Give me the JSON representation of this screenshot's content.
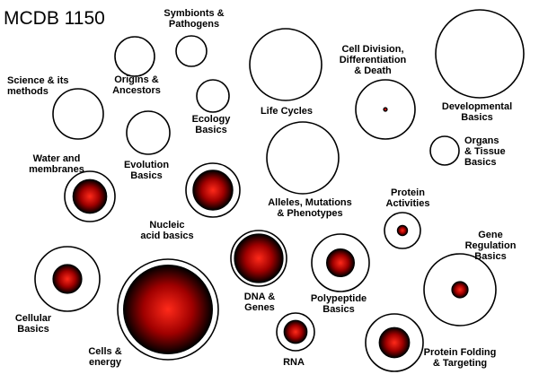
{
  "title": "MCDB 1150",
  "colors": {
    "core_center": "#ff2a1a",
    "core_mid": "#a00000",
    "core_edge": "#000000",
    "ring_stroke": "#000000",
    "background": "#ffffff"
  },
  "topics": [
    {
      "id": "symbionts",
      "label": [
        "Symbionts &",
        "Pathogens"
      ],
      "progress": 0
    },
    {
      "id": "origins",
      "label": [
        "Origins &",
        "Ancestors"
      ],
      "progress": 0
    },
    {
      "id": "science",
      "label": [
        "Science & its",
        "methods"
      ],
      "progress": 0
    },
    {
      "id": "ecology",
      "label": [
        "Ecology",
        "Basics"
      ],
      "progress": 0
    },
    {
      "id": "life-cycles",
      "label": [
        "Life Cycles"
      ],
      "progress": 0
    },
    {
      "id": "cell-division",
      "label": [
        "Cell Division,",
        "Differentiation",
        "& Death"
      ],
      "progress": 0.06
    },
    {
      "id": "developmental",
      "label": [
        "Developmental",
        "Basics"
      ],
      "progress": 0
    },
    {
      "id": "evolution",
      "label": [
        "Evolution",
        "Basics"
      ],
      "progress": 0
    },
    {
      "id": "organs",
      "label": [
        "Organs",
        "& Tissue",
        "Basics"
      ],
      "progress": 0
    },
    {
      "id": "water",
      "label": [
        "Water and",
        "membranes"
      ],
      "progress": 0.78
    },
    {
      "id": "nucleic",
      "label": [
        "Nucleic",
        "acid basics"
      ],
      "progress": 0.85
    },
    {
      "id": "alleles",
      "label": [
        "Alleles, Mutations",
        "& Phenotypes"
      ],
      "progress": 0
    },
    {
      "id": "protein-activities",
      "label": [
        "Protein",
        "Activities"
      ],
      "progress": 0.35
    },
    {
      "id": "gene-regulation",
      "label": [
        "Gene",
        "Regulation",
        "Basics"
      ],
      "progress": 0.25
    },
    {
      "id": "cellular",
      "label": [
        "Cellular",
        "Basics"
      ],
      "progress": 0.5
    },
    {
      "id": "dna",
      "label": [
        "DNA &",
        "Genes"
      ],
      "progress": 1.0
    },
    {
      "id": "polypeptide",
      "label": [
        "Polypeptide",
        "Basics"
      ],
      "progress": 0.55
    },
    {
      "id": "cells-energy",
      "label": [
        "Cells &",
        "energy"
      ],
      "progress": 0.95
    },
    {
      "id": "rna",
      "label": [
        "RNA"
      ],
      "progress": 0.75
    },
    {
      "id": "protein-folding",
      "label": [
        "Protein Folding",
        "& Targeting"
      ],
      "progress": 0.6
    }
  ]
}
